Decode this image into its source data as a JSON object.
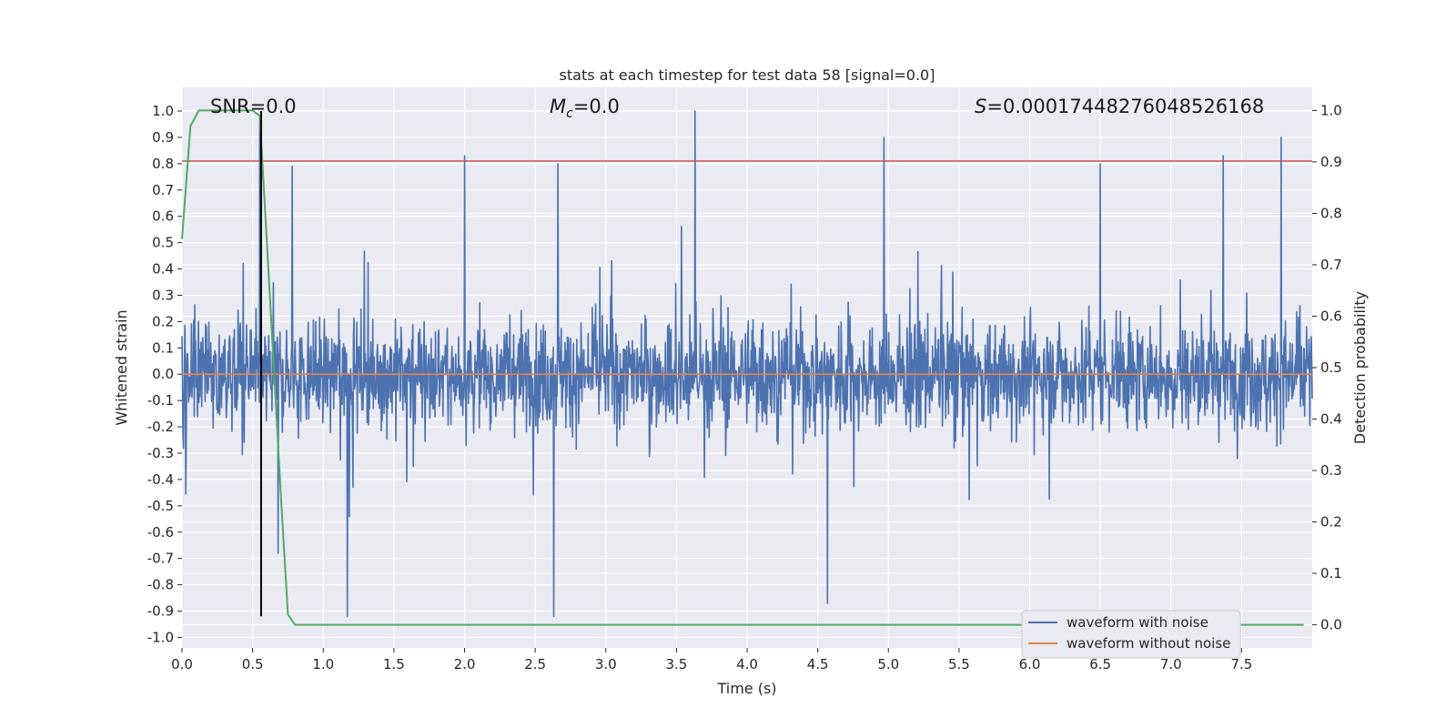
{
  "chart_data": {
    "type": "line",
    "title": "stats at each timestep for test data 58 [signal=0.0]",
    "xlabel": "Time (s)",
    "ylabel": "Whitened strain",
    "y2label": "Detection probability",
    "xlim": [
      0.0,
      8.0
    ],
    "ylim": [
      -1.04,
      1.09
    ],
    "y2lim": [
      -0.045,
      1.045
    ],
    "x_ticks": [
      0.0,
      0.5,
      1.0,
      1.5,
      2.0,
      2.5,
      3.0,
      3.5,
      4.0,
      4.5,
      5.0,
      5.5,
      6.0,
      6.5,
      7.0,
      7.5
    ],
    "y_ticks": [
      -1.0,
      -0.9,
      -0.8,
      -0.7,
      -0.6,
      -0.5,
      -0.4,
      -0.3,
      -0.2,
      -0.1,
      0.0,
      0.1,
      0.2,
      0.3,
      0.4,
      0.5,
      0.6,
      0.7,
      0.8,
      0.9,
      1.0
    ],
    "y2_ticks": [
      0.0,
      0.1,
      0.2,
      0.3,
      0.4,
      0.5,
      0.6,
      0.7,
      0.8,
      0.9,
      1.0
    ],
    "grid": true,
    "legend_position": "lower-right",
    "annotations": {
      "snr": "SNR=0.0",
      "mc_symbol": "M",
      "mc_sub": "c",
      "mc_value": "=0.0",
      "s_symbol": "S",
      "s_value": "=0.00017448276048526168"
    },
    "series": [
      {
        "name": "waveform with noise",
        "color": "#4c72b0",
        "axis": "left",
        "note": "noise approx. within -0.9 to 1.0; peaks listed",
        "noise_envelope": [
          -0.55,
          0.55
        ],
        "peaks": [
          [
            0.55,
            0.96
          ],
          [
            0.68,
            -0.68
          ],
          [
            0.78,
            0.79
          ],
          [
            1.17,
            -0.92
          ],
          [
            2.0,
            0.83
          ],
          [
            2.63,
            -0.92
          ],
          [
            2.66,
            0.8
          ],
          [
            3.63,
            1.0
          ],
          [
            4.57,
            -0.87
          ],
          [
            4.97,
            0.9
          ],
          [
            6.5,
            0.8
          ],
          [
            7.37,
            0.83
          ],
          [
            7.78,
            0.9
          ]
        ]
      },
      {
        "name": "waveform without noise",
        "color": "#dd8452",
        "axis": "left",
        "x": [
          0.0,
          8.0
        ],
        "y": [
          0.0,
          0.0
        ]
      },
      {
        "color": "#55a868",
        "axis": "right",
        "x": [
          0.0,
          0.06,
          0.12,
          0.25,
          0.4,
          0.5,
          0.55,
          0.6,
          0.65,
          0.7,
          0.75,
          0.8,
          0.85,
          1.0,
          2.0,
          4.0,
          6.0,
          7.94
        ],
        "y": [
          0.75,
          0.97,
          1.0,
          1.0,
          1.0,
          1.0,
          0.99,
          0.75,
          0.5,
          0.25,
          0.02,
          0.0,
          0.0,
          0.0,
          0.0,
          0.0,
          0.0,
          0.0
        ]
      }
    ],
    "hlines": [
      {
        "y": 0.81,
        "color": "#c44e52",
        "axis": "left"
      }
    ],
    "vlines": [
      {
        "x": 0.56,
        "ymin": -0.92,
        "ymax": 1.0,
        "color": "#000000"
      }
    ]
  }
}
